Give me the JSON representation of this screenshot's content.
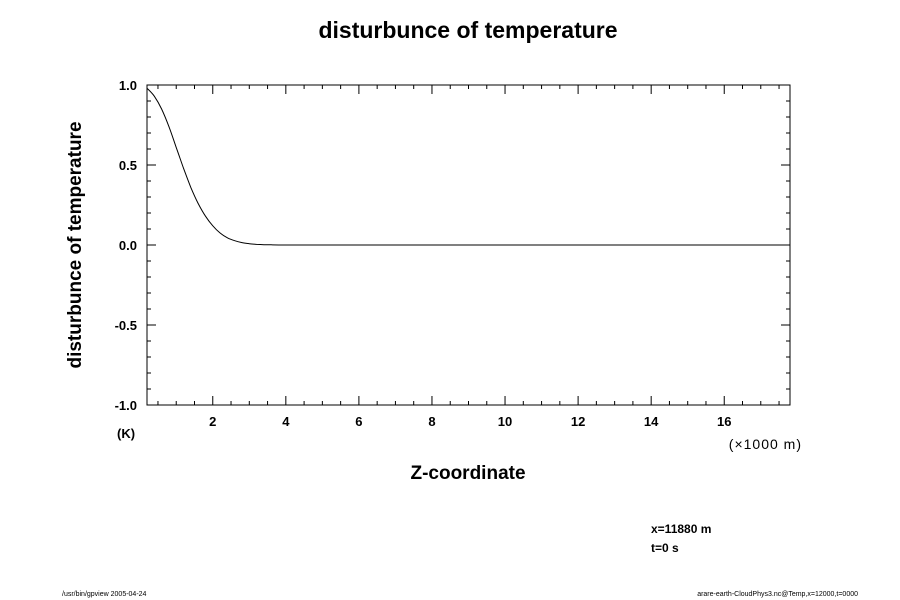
{
  "chart_data": {
    "type": "line",
    "title": "disturbunce of temperature",
    "xlabel": "Z-coordinate",
    "ylabel": "disturbunce of temperature",
    "x_unit": "(×1000 m)",
    "y_unit": "(K)",
    "xlim": [
      0.2,
      17.8
    ],
    "ylim": [
      -1.0,
      1.0
    ],
    "x_ticks": [
      2,
      4,
      6,
      8,
      10,
      12,
      14,
      16
    ],
    "x_tick_labels": [
      "2",
      "4",
      "6",
      "8",
      "10",
      "12",
      "14",
      "16"
    ],
    "y_ticks": [
      -1.0,
      -0.5,
      0.0,
      0.5,
      1.0
    ],
    "y_tick_labels": [
      "-1.0",
      "-0.5",
      "0.0",
      "0.5",
      "1.0"
    ],
    "grid": false,
    "series": [
      {
        "x": [
          0.2,
          0.4,
          0.6,
          0.8,
          1.0,
          1.2,
          1.4,
          1.6,
          1.8,
          2.0,
          2.2,
          2.4,
          2.6,
          2.8,
          3.0,
          3.2,
          3.4,
          3.6,
          4.0,
          5.0,
          6.0,
          8.0,
          10.0,
          12.0,
          14.0,
          16.0,
          17.8
        ],
        "y": [
          0.98,
          0.93,
          0.85,
          0.74,
          0.61,
          0.48,
          0.36,
          0.26,
          0.18,
          0.12,
          0.075,
          0.045,
          0.027,
          0.015,
          0.008,
          0.004,
          0.002,
          0.001,
          0.0,
          0.0,
          0.0,
          0.0,
          0.0,
          0.0,
          0.0,
          0.0,
          0.0
        ]
      }
    ]
  },
  "annotations": {
    "position": "x=11880 m",
    "time": "t=0 s"
  },
  "footer": {
    "left": "/usr/bin/gpview 2005-04-24",
    "right": "arare-earth-CloudPhys3.nc@Temp,x=12000,t=0000"
  }
}
